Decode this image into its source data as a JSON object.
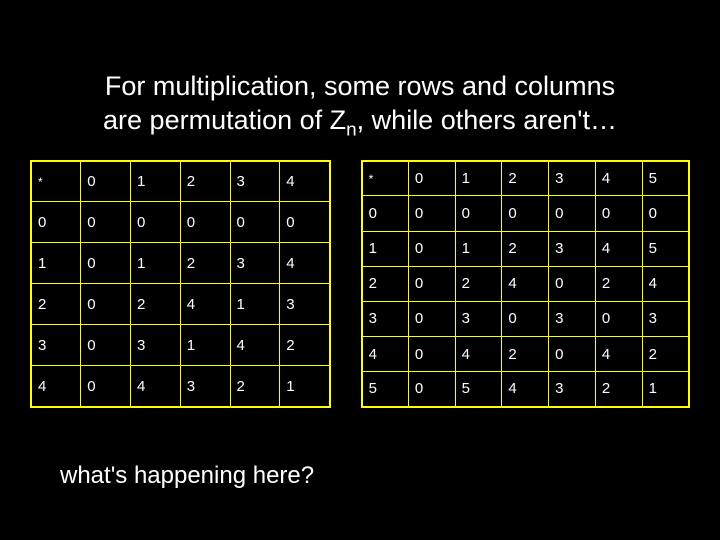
{
  "heading_line1": "For multiplication, some rows and columns",
  "heading_line2a": "are permutation of Z",
  "heading_line2_sub": "n",
  "heading_line2b": ", while others aren't…",
  "footer": "what's happening here?",
  "table5": {
    "corner": "*",
    "col_headers": [
      "0",
      "1",
      "2",
      "3",
      "4"
    ],
    "row_headers": [
      "0",
      "1",
      "2",
      "3",
      "4"
    ],
    "rows": [
      [
        "0",
        "0",
        "0",
        "0",
        "0"
      ],
      [
        "0",
        "1",
        "2",
        "3",
        "4"
      ],
      [
        "0",
        "2",
        "4",
        "1",
        "3"
      ],
      [
        "0",
        "3",
        "1",
        "4",
        "2"
      ],
      [
        "0",
        "4",
        "3",
        "2",
        "1"
      ]
    ]
  },
  "table6": {
    "corner": "*",
    "col_headers": [
      "0",
      "1",
      "2",
      "3",
      "4",
      "5"
    ],
    "row_headers": [
      "0",
      "1",
      "2",
      "3",
      "4",
      "5"
    ],
    "rows": [
      [
        "0",
        "0",
        "0",
        "0",
        "0",
        "0"
      ],
      [
        "0",
        "1",
        "2",
        "3",
        "4",
        "5"
      ],
      [
        "0",
        "2",
        "4",
        "0",
        "2",
        "4"
      ],
      [
        "0",
        "3",
        "0",
        "3",
        "0",
        "3"
      ],
      [
        "0",
        "4",
        "2",
        "0",
        "4",
        "2"
      ],
      [
        "0",
        "5",
        "4",
        "3",
        "2",
        "1"
      ]
    ]
  },
  "style": {
    "background_color": "#000000",
    "text_color": "#ffffff",
    "table_border_color": "#ffff00",
    "heading_fontsize": 27,
    "footer_fontsize": 24,
    "cell_fontsize": 15,
    "t5_cell_width": 50,
    "t5_cell_height": 41,
    "t6_cell_width": 47,
    "t6_cell_height": 35
  }
}
